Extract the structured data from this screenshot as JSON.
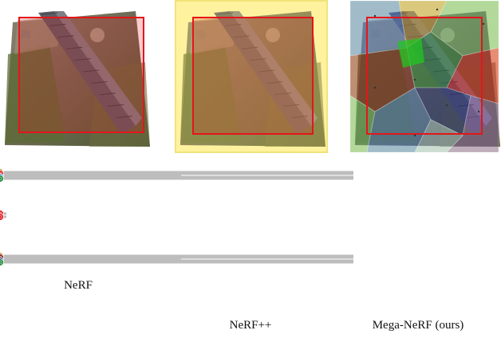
{
  "captions": {
    "nerf": "NeRF",
    "nerfpp": "NeRF++",
    "mega": "Mega-NeRF (ours)"
  },
  "colors": {
    "nerf_node": "#e3161b",
    "nerfpp_fg_node": "#e3161b",
    "nerfpp_bg_node": "#f2cd05",
    "mega_submodules": [
      "#c89a2d",
      "#e3161b",
      "#8b1a1a",
      "#4a7fd4",
      "#1d8a3a",
      "#1a2a8a"
    ],
    "region_outline": "#e3161b",
    "foreground_tint": "#ffe96b",
    "arrow_gray": "#d4d4d4"
  },
  "icons": [
    "aerial-photo",
    "sample-node",
    "network-arrow"
  ]
}
